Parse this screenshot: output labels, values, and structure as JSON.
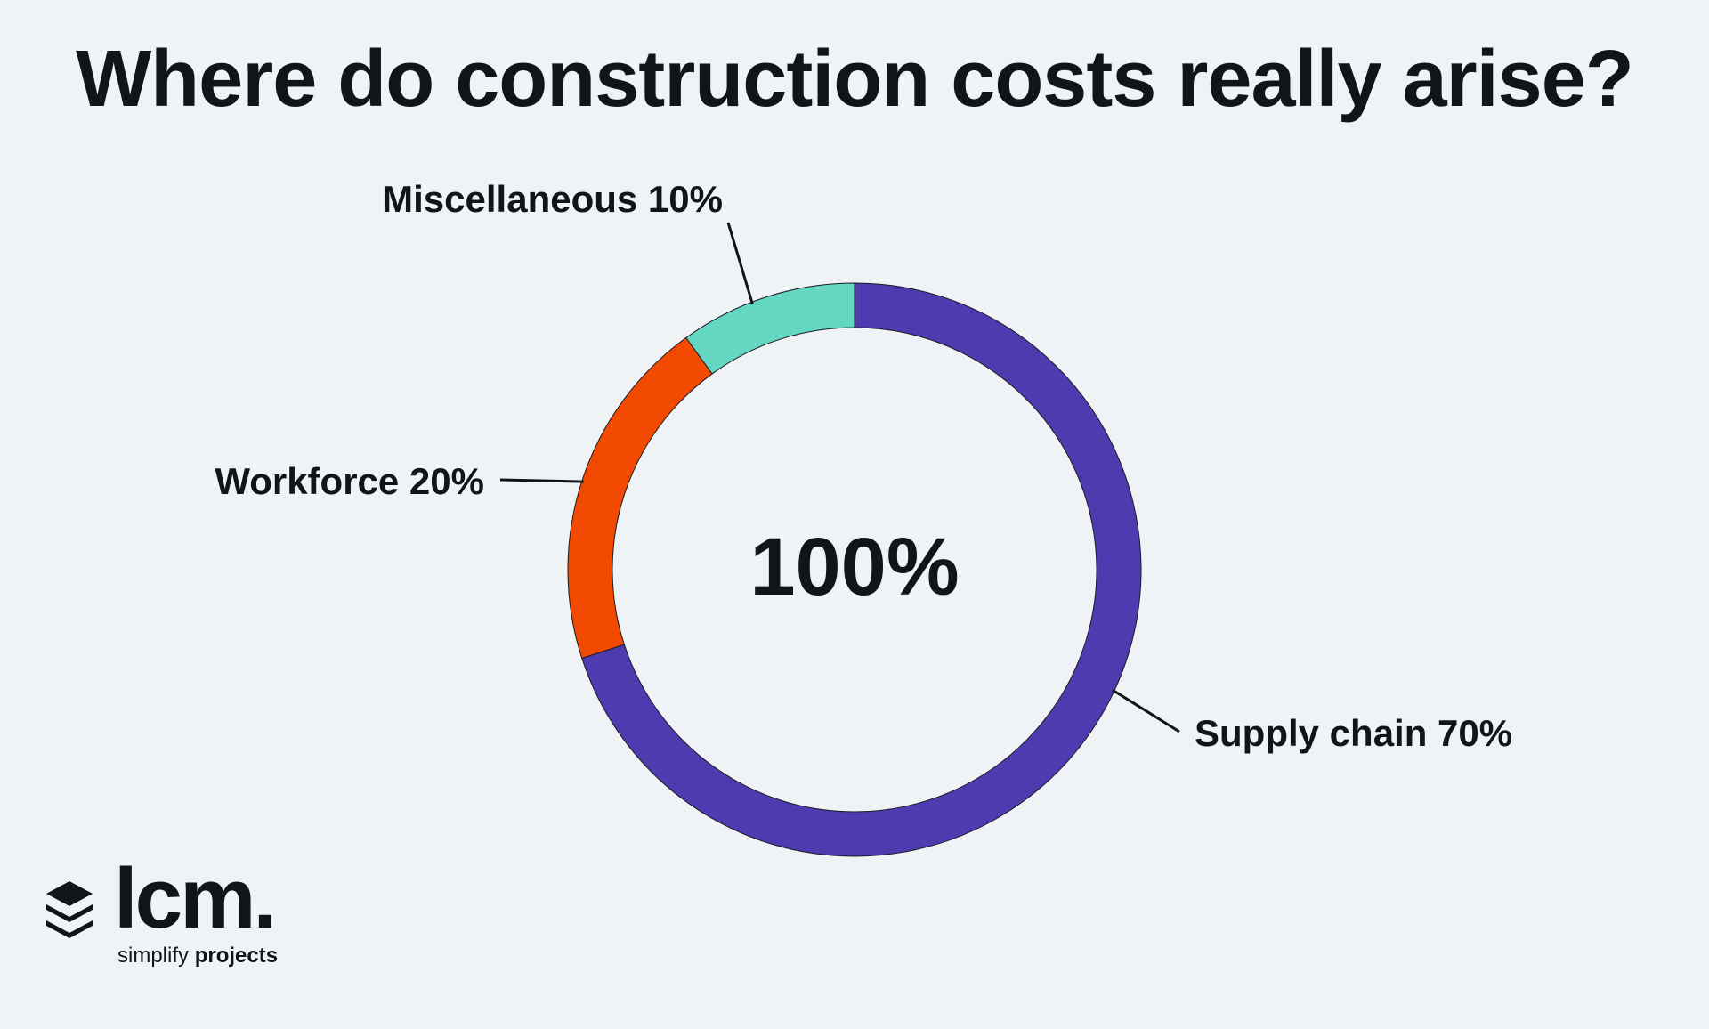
{
  "title": "Where do construction costs really arise?",
  "chart_data": {
    "type": "pie",
    "variant": "donut",
    "title": "Where do construction costs really arise?",
    "center_label": "100%",
    "slices": [
      {
        "name": "Supply chain",
        "value": 70,
        "label": "Supply chain 70%",
        "color": "#4f3aaf"
      },
      {
        "name": "Workforce",
        "value": 20,
        "label": "Workforce 20%",
        "color": "#f24a00"
      },
      {
        "name": "Miscellaneous",
        "value": 10,
        "label": "Miscellaneous 10%",
        "color": "#63d7c2"
      }
    ],
    "start_angle_deg": 0,
    "direction": "clockwise"
  },
  "brand": {
    "wordmark": "lcm.",
    "tagline_prefix": "simplify",
    "tagline_bold": "projects",
    "icon": "stacked-layers-icon"
  }
}
